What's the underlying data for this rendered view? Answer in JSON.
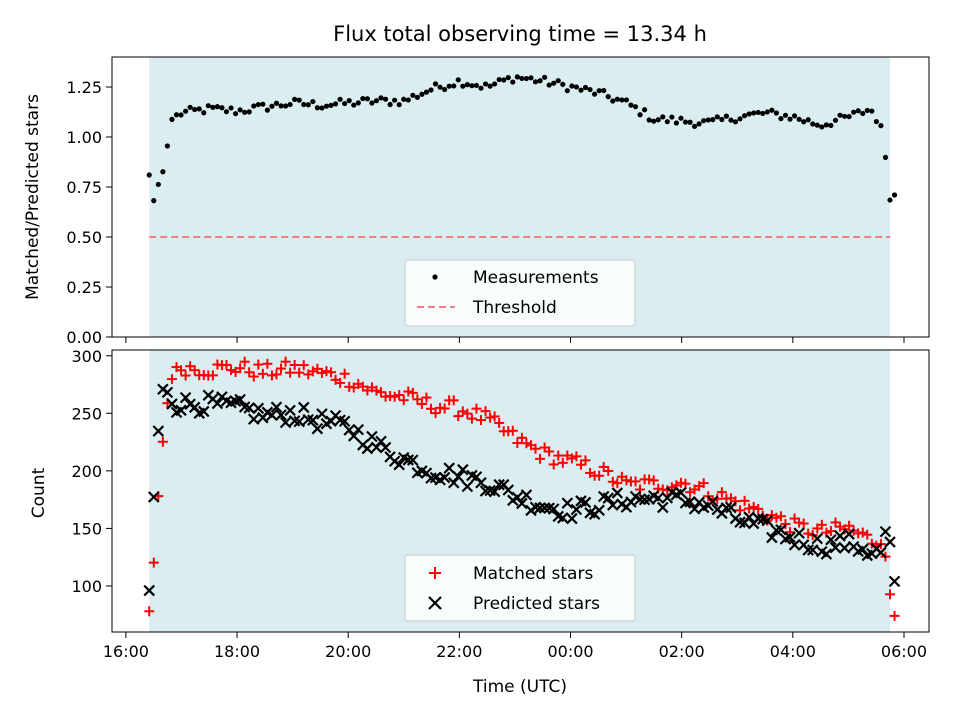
{
  "chart_data": {
    "type": "scatter",
    "title": "Flux total observing time = 13.34 h",
    "xlabel": "Time (UTC)",
    "x_ticks": [
      "16:00",
      "18:00",
      "20:00",
      "22:00",
      "00:00",
      "02:00",
      "04:00",
      "06:00"
    ],
    "x_tick_hours": [
      0,
      2,
      4,
      6,
      8,
      10,
      12,
      14
    ],
    "x_range_hours": [
      -0.25,
      14.45
    ],
    "shaded_span_hours": [
      0.42,
      13.75
    ],
    "colors": {
      "shade": "#d3ebf0",
      "matched": "#ff0000",
      "predicted": "#000000",
      "threshold": "#f08080",
      "ratio": "#000000"
    },
    "panels": [
      {
        "id": "ratio",
        "ylabel": "Matched/Predicted stars",
        "ylim": [
          0,
          1.4
        ],
        "y_ticks": [
          "0.00",
          "0.25",
          "0.50",
          "0.75",
          "1.00",
          "1.25"
        ],
        "y_tick_values": [
          0,
          0.25,
          0.5,
          0.75,
          1.0,
          1.25
        ],
        "threshold": 0.5,
        "legend": {
          "position": "lower center",
          "entries": [
            "Measurements",
            "Threshold"
          ]
        },
        "control_points": [
          [
            0.42,
            0.81
          ],
          [
            0.5,
            0.68
          ],
          [
            0.58,
            0.76
          ],
          [
            0.67,
            0.83
          ],
          [
            0.75,
            0.96
          ],
          [
            0.83,
            1.09
          ],
          [
            1.0,
            1.12
          ],
          [
            1.5,
            1.14
          ],
          [
            2.0,
            1.13
          ],
          [
            2.5,
            1.15
          ],
          [
            3.0,
            1.17
          ],
          [
            3.5,
            1.16
          ],
          [
            4.0,
            1.17
          ],
          [
            4.5,
            1.18
          ],
          [
            5.0,
            1.18
          ],
          [
            5.5,
            1.24
          ],
          [
            6.0,
            1.28
          ],
          [
            6.5,
            1.25
          ],
          [
            7.0,
            1.3
          ],
          [
            7.5,
            1.28
          ],
          [
            8.0,
            1.25
          ],
          [
            8.5,
            1.22
          ],
          [
            9.0,
            1.17
          ],
          [
            9.5,
            1.09
          ],
          [
            10.0,
            1.08
          ],
          [
            10.5,
            1.07
          ],
          [
            11.0,
            1.1
          ],
          [
            11.5,
            1.12
          ],
          [
            12.0,
            1.1
          ],
          [
            12.5,
            1.06
          ],
          [
            13.0,
            1.1
          ],
          [
            13.4,
            1.14
          ],
          [
            13.6,
            1.05
          ],
          [
            13.67,
            0.89
          ],
          [
            13.75,
            0.68
          ],
          [
            13.83,
            0.71
          ]
        ],
        "num_points": 165
      },
      {
        "id": "count",
        "ylabel": "Count",
        "ylim": [
          60,
          305
        ],
        "y_ticks": [
          "100",
          "150",
          "200",
          "250",
          "300"
        ],
        "y_tick_values": [
          100,
          150,
          200,
          250,
          300
        ],
        "legend": {
          "position": "lower center",
          "entries": [
            "Matched stars",
            "Predicted stars"
          ]
        },
        "series": [
          {
            "name": "Matched stars",
            "marker": "plus",
            "control_points": [
              [
                0.42,
                78
              ],
              [
                0.5,
                119
              ],
              [
                0.58,
                176
              ],
              [
                0.67,
                228
              ],
              [
                0.75,
                260
              ],
              [
                0.83,
                280
              ],
              [
                1.0,
                290
              ],
              [
                1.5,
                288
              ],
              [
                2.0,
                290
              ],
              [
                2.5,
                286
              ],
              [
                3.0,
                289
              ],
              [
                3.5,
                285
              ],
              [
                4.0,
                280
              ],
              [
                4.5,
                268
              ],
              [
                5.0,
                264
              ],
              [
                5.5,
                257
              ],
              [
                6.0,
                254
              ],
              [
                6.5,
                245
              ],
              [
                7.0,
                228
              ],
              [
                7.5,
                215
              ],
              [
                8.0,
                208
              ],
              [
                8.5,
                200
              ],
              [
                9.0,
                188
              ],
              [
                9.5,
                188
              ],
              [
                10.0,
                190
              ],
              [
                10.5,
                182
              ],
              [
                11.0,
                172
              ],
              [
                11.5,
                163
              ],
              [
                12.0,
                152
              ],
              [
                12.5,
                147
              ],
              [
                13.0,
                150
              ],
              [
                13.4,
                140
              ],
              [
                13.58,
                137
              ],
              [
                13.67,
                125
              ],
              [
                13.75,
                92
              ],
              [
                13.83,
                74
              ]
            ]
          },
          {
            "name": "Predicted stars",
            "marker": "x",
            "control_points": [
              [
                0.42,
                96
              ],
              [
                0.5,
                176
              ],
              [
                0.58,
                233
              ],
              [
                0.67,
                273
              ],
              [
                0.75,
                268
              ],
              [
                0.83,
                258
              ],
              [
                1.0,
                258
              ],
              [
                1.5,
                258
              ],
              [
                2.0,
                255
              ],
              [
                2.5,
                248
              ],
              [
                3.0,
                250
              ],
              [
                3.5,
                243
              ],
              [
                4.0,
                238
              ],
              [
                4.5,
                222
              ],
              [
                5.0,
                210
              ],
              [
                5.5,
                200
              ],
              [
                6.0,
                195
              ],
              [
                6.5,
                190
              ],
              [
                7.0,
                178
              ],
              [
                7.5,
                170
              ],
              [
                8.0,
                165
              ],
              [
                8.5,
                170
              ],
              [
                9.0,
                175
              ],
              [
                9.5,
                176
              ],
              [
                10.0,
                175
              ],
              [
                10.5,
                170
              ],
              [
                11.0,
                158
              ],
              [
                11.5,
                150
              ],
              [
                12.0,
                142
              ],
              [
                12.5,
                135
              ],
              [
                13.0,
                138
              ],
              [
                13.4,
                130
              ],
              [
                13.58,
                128
              ],
              [
                13.67,
                148
              ],
              [
                13.75,
                138
              ],
              [
                13.83,
                104
              ]
            ]
          }
        ],
        "num_points": 165
      }
    ]
  }
}
